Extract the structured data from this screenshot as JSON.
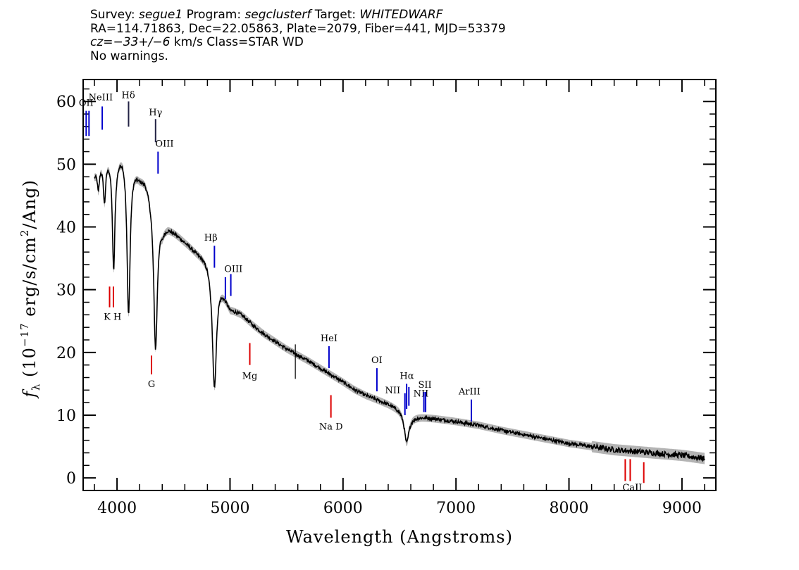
{
  "header": {
    "line1": {
      "survey_label": "Survey: ",
      "survey": "segue1",
      "program_label": " Program: ",
      "program": "segclusterf",
      "target_label": " Target: ",
      "target": "WHITEDWARF"
    },
    "line2": "RA=114.71863, Dec=22.05863, Plate=2079, Fiber=441, MJD=53379",
    "line3": {
      "cz_label": "cz",
      "cz_value": "=−33+/−6",
      "rest": " km/s Class=STAR WD"
    },
    "line4": "No warnings."
  },
  "chart_data": {
    "type": "line",
    "xlabel": "Wavelength (Angstroms)",
    "ylabel": "f_λ (10^-17 erg/s/cm^2/Ang)",
    "xlim": [
      3700,
      9300
    ],
    "ylim": [
      -2,
      63.5
    ],
    "xticks": [
      4000,
      5000,
      6000,
      7000,
      8000,
      9000
    ],
    "yticks": [
      0,
      10,
      20,
      30,
      40,
      50,
      60
    ],
    "grid": false,
    "colors": {
      "spectrum": "#000000",
      "error_band": "#b4b4b4",
      "emission": "#0000cc",
      "absorption": "#dd0000"
    },
    "continuum": [
      [
        3800,
        48.5
      ],
      [
        3850,
        50.2
      ],
      [
        3900,
        51.2
      ],
      [
        3950,
        51.8
      ],
      [
        4000,
        51.5
      ],
      [
        4050,
        52.5
      ],
      [
        4100,
        51.5
      ],
      [
        4150,
        50
      ],
      [
        4200,
        48.5
      ],
      [
        4250,
        48
      ],
      [
        4300,
        46.2
      ],
      [
        4350,
        45
      ],
      [
        4400,
        40.5
      ],
      [
        4450,
        40.3
      ],
      [
        4500,
        39.5
      ],
      [
        4600,
        37.8
      ],
      [
        4700,
        36.2
      ],
      [
        4800,
        35
      ],
      [
        4900,
        31.8
      ],
      [
        5000,
        27.2
      ],
      [
        5100,
        26.2
      ],
      [
        5200,
        24.5
      ],
      [
        5300,
        23
      ],
      [
        5400,
        21.8
      ],
      [
        5500,
        20.6
      ],
      [
        5600,
        19.6
      ],
      [
        5700,
        18.6
      ],
      [
        5800,
        17.5
      ],
      [
        5900,
        16.4
      ],
      [
        6000,
        15.3
      ],
      [
        6100,
        14.1
      ],
      [
        6200,
        13.2
      ],
      [
        6300,
        12.5
      ],
      [
        6400,
        11.8
      ],
      [
        6500,
        11.0
      ],
      [
        6600,
        9.8
      ],
      [
        6700,
        9.7
      ],
      [
        6800,
        9.5
      ],
      [
        7000,
        9.0
      ],
      [
        7200,
        8.4
      ],
      [
        7400,
        7.6
      ],
      [
        7600,
        6.9
      ],
      [
        7800,
        6.2
      ],
      [
        8000,
        5.5
      ],
      [
        8200,
        5.0
      ],
      [
        8400,
        4.5
      ],
      [
        8600,
        4.2
      ],
      [
        8800,
        3.9
      ],
      [
        9000,
        3.6
      ],
      [
        9200,
        3.1
      ]
    ],
    "absorption_lines": [
      {
        "name": "H-epsilon",
        "center": 3889,
        "depth": 6.5,
        "width": 12
      },
      {
        "name": "H-zeta",
        "center": 3835,
        "depth": 3.5,
        "width": 10
      },
      {
        "name": "H-epsilon2",
        "center": 3970,
        "depth": 18,
        "width": 14
      },
      {
        "name": "H-delta",
        "center": 4102,
        "depth": 25,
        "width": 17
      },
      {
        "name": "H-gamma",
        "center": 4341,
        "depth": 24.5,
        "width": 20
      },
      {
        "name": "H-beta",
        "center": 4862,
        "depth": 18.5,
        "width": 22
      },
      {
        "name": "H-alpha",
        "center": 6563,
        "depth": 4.6,
        "width": 24
      }
    ],
    "line_markers": [
      {
        "label": "OII",
        "x": 3727,
        "y_top": 58.5,
        "y_bottom": 54.5,
        "color": "emission",
        "label_x": 3727,
        "label_y": 59.3,
        "double": true
      },
      {
        "label": "NeIII",
        "x": 3869,
        "y_top": 59.2,
        "y_bottom": 55.5,
        "color": "emission",
        "label_x": 3855,
        "label_y": 60.2
      },
      {
        "label": "Hδ",
        "x": 4102,
        "y_top": 60,
        "y_bottom": 56,
        "color": "emission_dark",
        "label_x": 4100,
        "label_y": 60.5
      },
      {
        "label": "Hγ",
        "x": 4341,
        "y_top": 57.2,
        "y_bottom": 53.5,
        "color": "emission_dark",
        "label_x": 4341,
        "label_y": 57.8
      },
      {
        "label": "OIII",
        "x": 4363,
        "y_top": 52,
        "y_bottom": 48.5,
        "color": "emission",
        "label_x": 4420,
        "label_y": 52.8
      },
      {
        "label": "Hβ",
        "x": 4862,
        "y_top": 37,
        "y_bottom": 33.5,
        "color": "emission",
        "label_x": 4830,
        "label_y": 37.8
      },
      {
        "label": "OIII",
        "x": 4959,
        "y_top": 32,
        "y_bottom": 28.5,
        "color": "emission",
        "label_x": 5030,
        "label_y": 32.8
      },
      {
        "label": "",
        "x": 5007,
        "y_top": 32.5,
        "y_bottom": 29,
        "color": "emission"
      },
      {
        "label": "K H",
        "x": 3934,
        "y_top": 30.5,
        "y_bottom": 27.2,
        "color": "absorption",
        "label_x": 3960,
        "label_y": 25.2,
        "double": true,
        "x2": 3968
      },
      {
        "label": "G",
        "x": 4305,
        "y_top": 19.5,
        "y_bottom": 16.5,
        "color": "absorption",
        "label_x": 4305,
        "label_y": 14.5
      },
      {
        "label": "Mg",
        "x": 5175,
        "y_top": 21.5,
        "y_bottom": 18,
        "color": "absorption",
        "label_x": 5175,
        "label_y": 15.8
      },
      {
        "label": "HeI",
        "x": 5876,
        "y_top": 21,
        "y_bottom": 17.5,
        "color": "emission",
        "label_x": 5876,
        "label_y": 21.8
      },
      {
        "label": "Na D",
        "x": 5893,
        "y_top": 13.2,
        "y_bottom": 9.6,
        "color": "absorption",
        "label_x": 5893,
        "label_y": 7.7
      },
      {
        "label": "OI",
        "x": 6300,
        "y_top": 17.5,
        "y_bottom": 13.8,
        "color": "emission",
        "label_x": 6300,
        "label_y": 18.3
      },
      {
        "label": "NII",
        "x": 6548,
        "y_top": 13.5,
        "y_bottom": 10,
        "color": "emission",
        "label_x": 6440,
        "label_y": 13.5
      },
      {
        "label": "Hα",
        "x": 6563,
        "y_top": 15,
        "y_bottom": 11,
        "color": "emission",
        "label_x": 6565,
        "label_y": 15.8
      },
      {
        "label": "NII",
        "x": 6583,
        "y_top": 14.5,
        "y_bottom": 11.5,
        "color": "emission",
        "label_x": 6690,
        "label_y": 13
      },
      {
        "label": "SII",
        "x": 6716,
        "y_top": 13.7,
        "y_bottom": 10.5,
        "color": "emission",
        "label_x": 6725,
        "label_y": 14.4,
        "double": true,
        "x2": 6731
      },
      {
        "label": "ArIII",
        "x": 7136,
        "y_top": 12.5,
        "y_bottom": 9,
        "color": "emission",
        "label_x": 7120,
        "label_y": 13.3
      },
      {
        "label": "CaII",
        "x": 8498,
        "y_top": 3,
        "y_bottom": -0.5,
        "color": "absorption",
        "label_x": 8560,
        "label_y": -2,
        "double": true,
        "x2": 8542
      },
      {
        "label": "",
        "x": 8662,
        "y_top": 2.5,
        "y_bottom": -0.8,
        "color": "absorption"
      }
    ]
  }
}
